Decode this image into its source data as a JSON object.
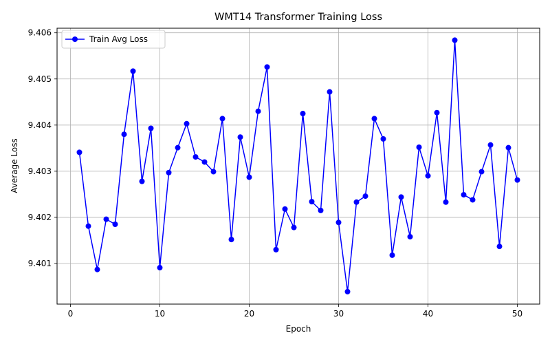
{
  "chart_data": {
    "type": "line",
    "title": "WMT14 Transformer Training Loss",
    "xlabel": "Epoch",
    "ylabel": "Average Loss",
    "xlim": [
      -1.5,
      52.5
    ],
    "ylim": [
      9.40012,
      9.4061
    ],
    "xticks": [
      0,
      10,
      20,
      30,
      40,
      50
    ],
    "yticks": [
      9.401,
      9.402,
      9.403,
      9.404,
      9.405,
      9.406
    ],
    "grid": true,
    "legend_position": "top-left",
    "series": [
      {
        "name": "Train Avg Loss",
        "color": "#0000ff",
        "marker": "circle",
        "x": [
          1,
          2,
          3,
          4,
          5,
          6,
          7,
          8,
          9,
          10,
          11,
          12,
          13,
          14,
          15,
          16,
          17,
          18,
          19,
          20,
          21,
          22,
          23,
          24,
          25,
          26,
          27,
          28,
          29,
          30,
          31,
          32,
          33,
          34,
          35,
          36,
          37,
          38,
          39,
          40,
          41,
          42,
          43,
          44,
          45,
          46,
          47,
          48,
          49,
          50
        ],
        "y": [
          9.40341,
          9.40181,
          9.40087,
          9.40196,
          9.40185,
          9.4038,
          9.40517,
          9.40278,
          9.40393,
          9.40091,
          9.40297,
          9.40351,
          9.40403,
          9.40331,
          9.4032,
          9.40299,
          9.40414,
          9.40152,
          9.40374,
          9.40287,
          9.4043,
          9.40526,
          9.4013,
          9.40218,
          9.40178,
          9.40425,
          9.40234,
          9.40215,
          9.40472,
          9.40189,
          9.40039,
          9.40233,
          9.40246,
          9.40414,
          9.4037,
          9.40118,
          9.40244,
          9.40158,
          9.40352,
          9.4029,
          9.40427,
          9.40233,
          9.40584,
          9.40249,
          9.40238,
          9.40299,
          9.40357,
          9.40137,
          9.40351,
          9.40281
        ]
      }
    ]
  }
}
